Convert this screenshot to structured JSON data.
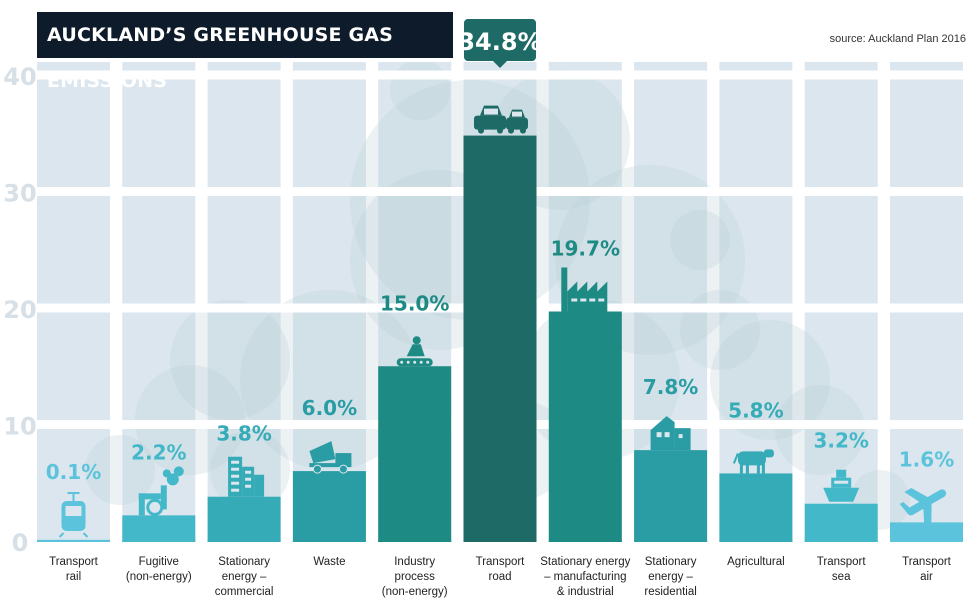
{
  "header": {
    "title": "AUCKLAND’S GREENHOUSE GAS EMISSIONS",
    "source": "source: Auckland Plan 2016"
  },
  "chart_data": {
    "type": "bar",
    "title": "AUCKLAND’S GREENHOUSE GAS EMISSIONS",
    "xlabel": "",
    "ylabel": "",
    "ylim": [
      0,
      40
    ],
    "yticks": [
      "0",
      "10",
      "20",
      "30",
      "40"
    ],
    "grid": true,
    "categories": [
      [
        "Transport",
        "rail"
      ],
      [
        "Fugitive",
        "(non-energy)"
      ],
      [
        "Stationary",
        "energy –",
        "commercial"
      ],
      [
        "Waste"
      ],
      [
        "Industry",
        "process",
        "(non-energy)"
      ],
      [
        "Transport",
        "road"
      ],
      [
        "Stationary energy",
        "– manufacturing",
        "& industrial"
      ],
      [
        "Stationary",
        "energy –",
        "residential"
      ],
      [
        "Agricultural"
      ],
      [
        "Transport",
        "sea"
      ],
      [
        "Transport",
        "air"
      ]
    ],
    "values": [
      0.1,
      2.2,
      3.8,
      6.0,
      15.0,
      34.8,
      19.7,
      7.8,
      5.8,
      3.2,
      1.6
    ],
    "labels": [
      "0.1%",
      "2.2%",
      "3.8%",
      "6.0%",
      "15.0%",
      "34.8%",
      "19.7%",
      "7.8%",
      "5.8%",
      "3.2%",
      "1.6%"
    ],
    "icons": [
      "train-icon",
      "pipes-icon",
      "office-buildings-icon",
      "dump-truck-icon",
      "conveyor-worker-icon",
      "cars-icon",
      "factory-icon",
      "houses-icon",
      "cow-icon",
      "ship-icon",
      "airplane-icon"
    ],
    "colors": [
      "#5cc3dc",
      "#43b8c9",
      "#35abb7",
      "#2a9ca4",
      "#1d8a84",
      "#1e6a66",
      "#1d8a84",
      "#2a9ca4",
      "#35abb7",
      "#43b8c9",
      "#5cc3dc"
    ],
    "highlight_color": "#1e6a66",
    "column_bg": "#dbe6ee"
  }
}
